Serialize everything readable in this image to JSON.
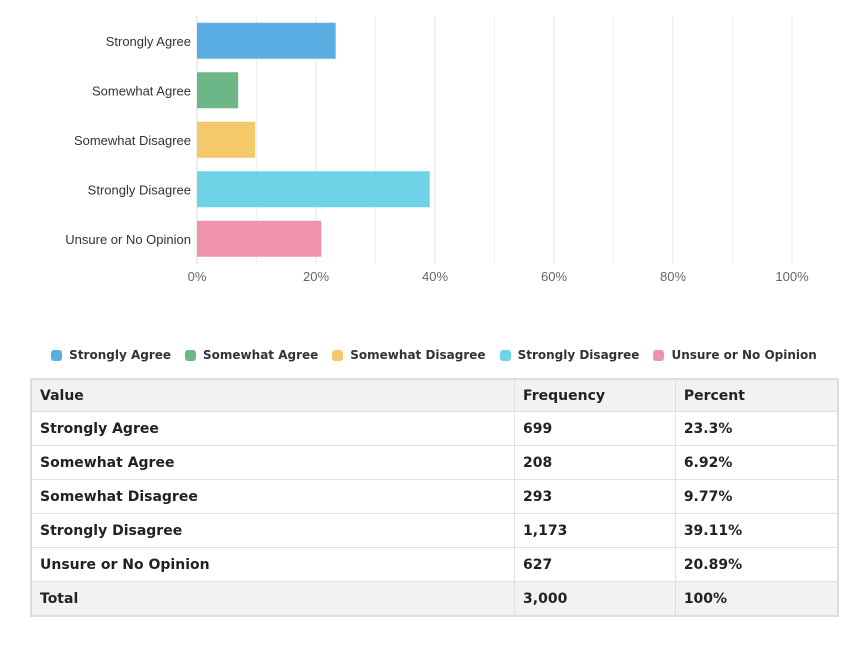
{
  "chart_data": {
    "type": "bar",
    "orientation": "horizontal",
    "categories": [
      "Strongly Agree",
      "Somewhat Agree",
      "Somewhat Disagree",
      "Strongly Disagree",
      "Unsure or No Opinion"
    ],
    "values": [
      23.3,
      6.92,
      9.77,
      39.11,
      20.89
    ],
    "colors": [
      "#5baee3",
      "#6cb688",
      "#f5c96a",
      "#6ed3e6",
      "#f094ad"
    ],
    "xlim": [
      0,
      100
    ],
    "x_ticks": [
      "0%",
      "20%",
      "40%",
      "60%",
      "80%",
      "100%"
    ],
    "grid": true,
    "legend_position": "bottom"
  },
  "legend": [
    {
      "label": "Strongly Agree",
      "color": "#5baee3"
    },
    {
      "label": "Somewhat Agree",
      "color": "#6cb688"
    },
    {
      "label": "Somewhat Disagree",
      "color": "#f5c96a"
    },
    {
      "label": "Strongly Disagree",
      "color": "#6ed3e6"
    },
    {
      "label": "Unsure or No Opinion",
      "color": "#f094ad"
    }
  ],
  "table": {
    "headers": [
      "Value",
      "Frequency",
      "Percent"
    ],
    "rows": [
      [
        "Strongly Agree",
        "699",
        "23.3%"
      ],
      [
        "Somewhat Agree",
        "208",
        "6.92%"
      ],
      [
        "Somewhat Disagree",
        "293",
        "9.77%"
      ],
      [
        "Strongly Disagree",
        "1,173",
        "39.11%"
      ],
      [
        "Unsure or No Opinion",
        "627",
        "20.89%"
      ]
    ],
    "total": [
      "Total",
      "3,000",
      "100%"
    ]
  }
}
